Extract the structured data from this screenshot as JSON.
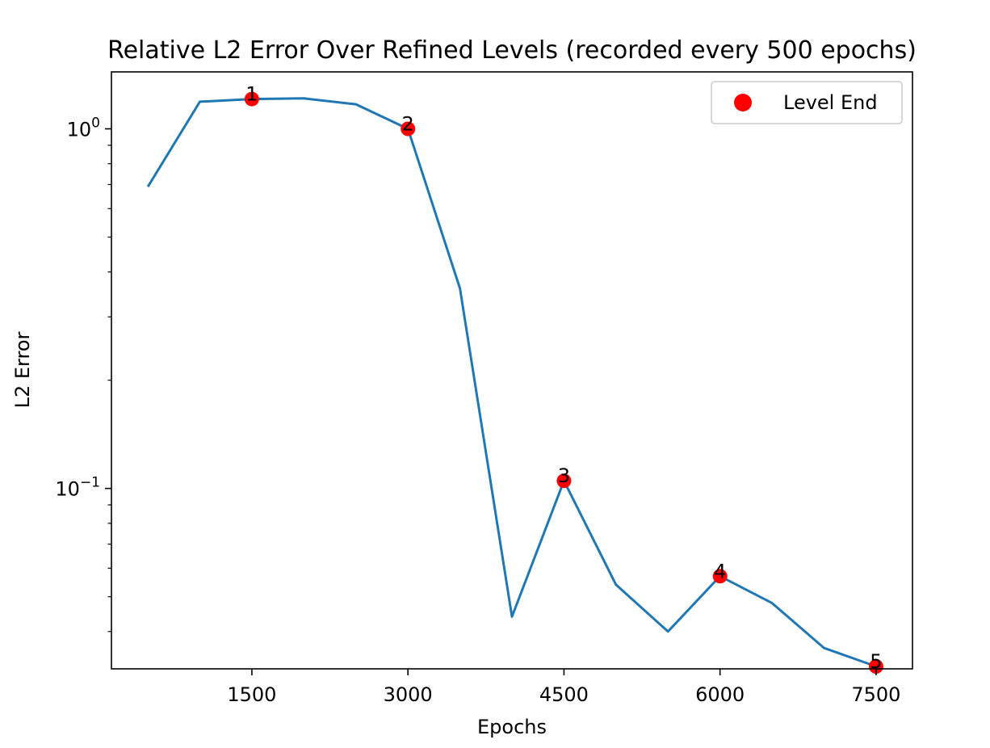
{
  "chart_data": {
    "type": "line",
    "title": "Relative L2 Error Over Refined Levels (recorded every 500 epochs)",
    "xlabel": "Epochs",
    "ylabel": "L2 Error",
    "yscale": "log",
    "xlim": [
      150,
      7850
    ],
    "ylim": [
      0.0315,
      1.44
    ],
    "x_ticks": [
      1500,
      3000,
      4500,
      6000,
      7500
    ],
    "x_tick_labels": [
      "1500",
      "3000",
      "4500",
      "6000",
      "7500"
    ],
    "y_ticks": [
      {
        "value": 1.0,
        "base": "10",
        "exp": "0"
      },
      {
        "value": 0.1,
        "base": "10",
        "exp": "−1"
      }
    ],
    "grid": false,
    "legend_position": "top-right",
    "series": [
      {
        "color": "#1f77b4",
        "x": [
          500,
          1000,
          1500,
          2000,
          2500,
          3000,
          3500,
          4000,
          4500,
          5000,
          5500,
          6000,
          6500,
          7000,
          7500
        ],
        "y": [
          0.69,
          1.19,
          1.21,
          1.215,
          1.17,
          1.0,
          0.36,
          0.044,
          0.105,
          0.054,
          0.04,
          0.057,
          0.048,
          0.036,
          0.032
        ]
      }
    ],
    "markers": {
      "name": "Level End",
      "color": "#ff0000",
      "points": [
        {
          "label": "1",
          "x": 1500,
          "y": 1.21
        },
        {
          "label": "2",
          "x": 3000,
          "y": 1.0
        },
        {
          "label": "3",
          "x": 4500,
          "y": 0.105
        },
        {
          "label": "4",
          "x": 6000,
          "y": 0.057
        },
        {
          "label": "5",
          "x": 7500,
          "y": 0.032
        }
      ]
    }
  }
}
